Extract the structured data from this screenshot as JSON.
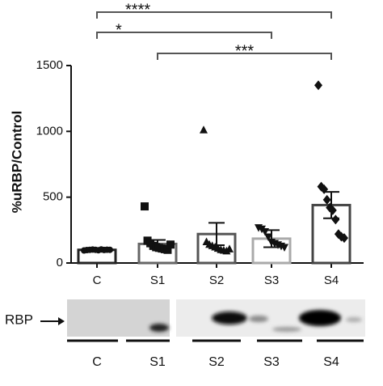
{
  "chart_data": {
    "type": "bar-scatter",
    "y_label": "%uRBP/Control",
    "categories": [
      "C",
      "S1",
      "S2",
      "S3",
      "S4"
    ],
    "values": [
      100,
      145,
      220,
      185,
      440
    ],
    "errors": [
      8,
      30,
      85,
      65,
      100
    ],
    "colors": [
      "#222222",
      "#666666",
      "#555555",
      "#aaaaaa",
      "#444444"
    ],
    "markers": [
      "circle",
      "square",
      "triangle",
      "triangle-down",
      "diamond"
    ],
    "points": [
      [
        95,
        98,
        100,
        102,
        100,
        97,
        103,
        99,
        101,
        100
      ],
      [
        430,
        170,
        150,
        130,
        120,
        115,
        110,
        105,
        100,
        140
      ],
      [
        1010,
        160,
        140,
        130,
        120,
        110,
        100,
        95,
        90,
        105
      ],
      [
        270,
        260,
        240,
        200,
        160,
        150,
        140,
        130,
        120
      ],
      [
        1350,
        580,
        560,
        480,
        420,
        400,
        330,
        220,
        200,
        190
      ]
    ],
    "ylim": [
      0,
      1500
    ],
    "yticks": [
      0,
      500,
      1000,
      1500
    ],
    "annotations": [
      {
        "text": "****",
        "from": "C",
        "to": "S4"
      },
      {
        "text": "*",
        "from": "C",
        "to": "S3"
      },
      {
        "text": "***",
        "from": "S1",
        "to": "S4"
      }
    ],
    "blot_label": "RBP"
  }
}
